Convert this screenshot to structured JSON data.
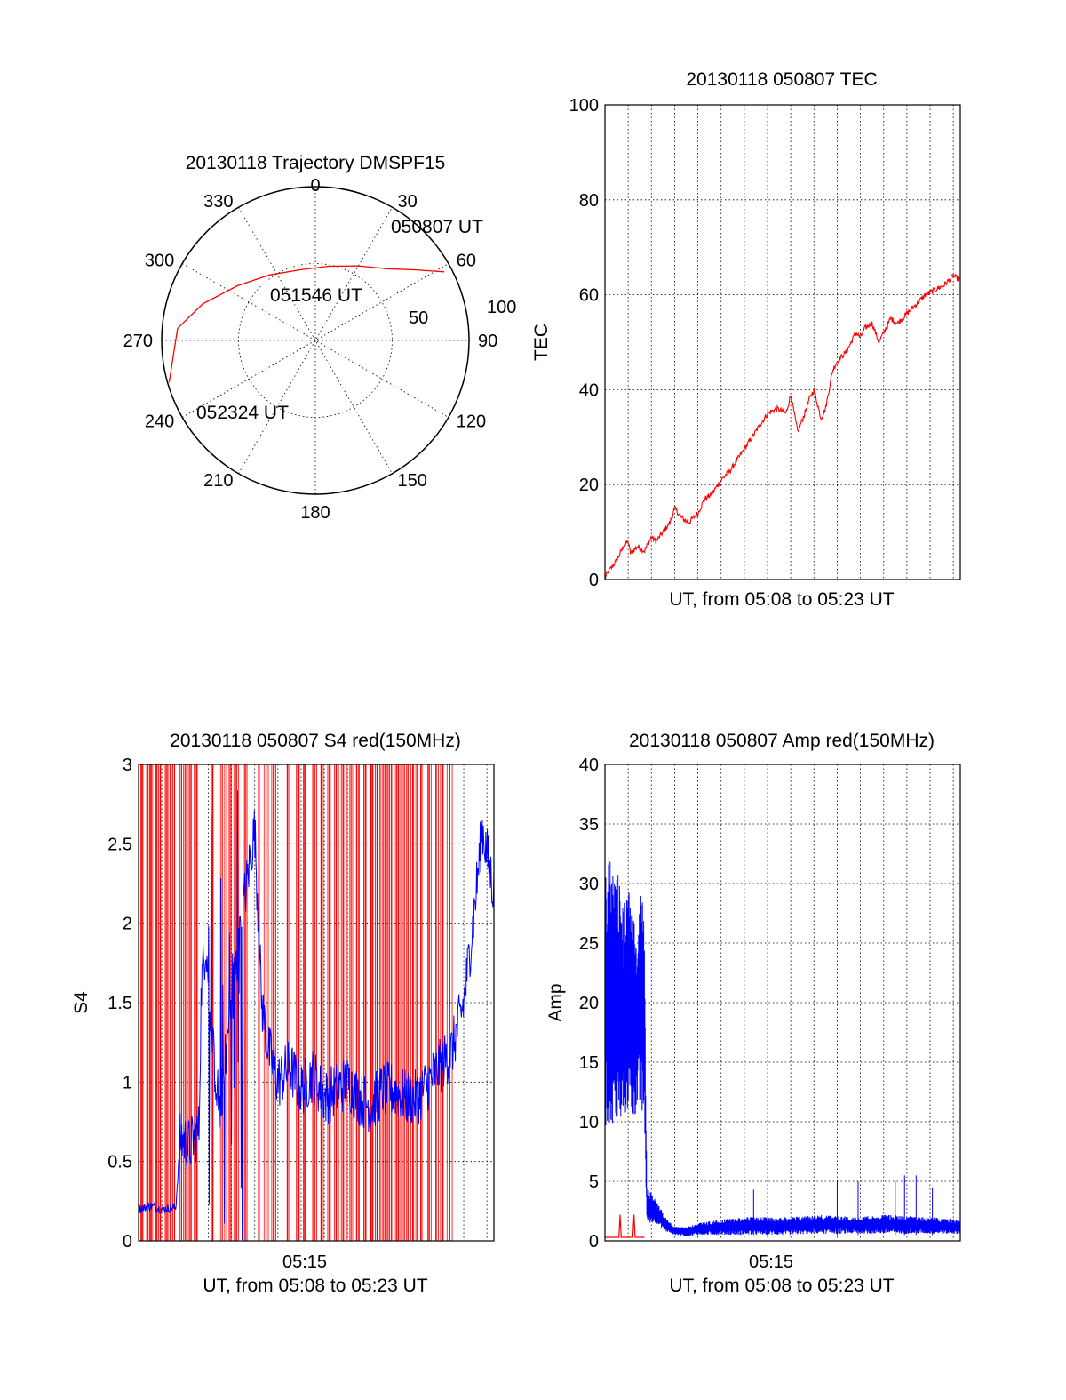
{
  "chart_data": [
    {
      "type": "polar",
      "title": "20130118 Trajectory DMSPF15",
      "angle_labels": [
        "0",
        "30",
        "60",
        "90",
        "120",
        "150",
        "180",
        "210",
        "240",
        "270",
        "300",
        "330"
      ],
      "radius_labels": [
        "50",
        "100"
      ],
      "rlim": [
        0,
        100
      ],
      "grid": true,
      "series": [
        {
          "color": "#ff0000",
          "points": [
            {
              "az": 62,
              "r": 95
            },
            {
              "az": 55,
              "r": 80
            },
            {
              "az": 45,
              "r": 66
            },
            {
              "az": 30,
              "r": 56
            },
            {
              "az": 10,
              "r": 49
            },
            {
              "az": -12,
              "r": 47
            },
            {
              "az": -35,
              "r": 52
            },
            {
              "az": -55,
              "r": 62
            },
            {
              "az": -72,
              "r": 77
            },
            {
              "az": -85,
              "r": 90
            },
            {
              "az": -106,
              "r": 99
            }
          ]
        }
      ],
      "annotations": [
        "050807 UT",
        "051546 UT",
        "052324 UT"
      ]
    },
    {
      "type": "line",
      "title": "20130118 050807 TEC",
      "xlabel": "UT, from 05:08 to 05:23 UT",
      "ylabel": "TEC",
      "xlim": [
        0,
        15.3
      ],
      "ylim": [
        0,
        100
      ],
      "yticks": [
        "0",
        "20",
        "40",
        "60",
        "80",
        "100"
      ],
      "grid": true,
      "series": [
        {
          "color": "#ff0000",
          "x": [
            0.0,
            0.2,
            0.5,
            0.8,
            1.0,
            1.1,
            1.4,
            1.7,
            2.0,
            2.2,
            2.5,
            2.8,
            3.0,
            3.3,
            3.6,
            4.0,
            4.3,
            4.6,
            5.0,
            5.4,
            5.8,
            6.2,
            6.6,
            7.0,
            7.4,
            7.8,
            8.0,
            8.3,
            8.6,
            8.8,
            9.0,
            9.3,
            9.5,
            9.8,
            10.0,
            10.4,
            10.8,
            11.0,
            11.2,
            11.5,
            11.8,
            12.0,
            12.3,
            12.6,
            13.0,
            13.4,
            13.8,
            14.2,
            14.6,
            15.0,
            15.3
          ],
          "y": [
            0.5,
            2,
            4,
            7,
            8,
            5.5,
            7,
            6,
            9,
            8,
            10,
            12,
            15,
            13,
            12,
            14,
            17,
            18,
            21,
            23,
            26,
            29,
            32,
            35,
            36,
            35,
            39,
            31,
            35,
            38,
            40,
            34,
            36,
            44,
            46,
            48,
            52,
            51,
            53,
            54,
            50,
            52,
            55,
            54,
            56,
            58,
            60,
            61,
            62,
            64,
            63
          ]
        }
      ]
    },
    {
      "type": "line",
      "title": "20130118 050807 S4 red(150MHz)",
      "xlabel": "UT, from 05:08 to 05:23 UT",
      "ylabel": "S4",
      "xlim": [
        0,
        15.3
      ],
      "ylim": [
        0,
        3
      ],
      "xticks": [
        "05:15"
      ],
      "yticks": [
        "0",
        "0.5",
        "1",
        "1.5",
        "2",
        "2.5",
        "3"
      ],
      "grid": true,
      "series": [
        {
          "color": "#ff0000",
          "spike_x": [
            0.15,
            0.35,
            0.55,
            0.75,
            0.95,
            1.15,
            1.35,
            1.55,
            1.75,
            2.0,
            2.25,
            2.5,
            3.2,
            3.6,
            3.9,
            4.2,
            4.6,
            5.2,
            5.5,
            5.8,
            6.4,
            6.8,
            7.2,
            7.6,
            7.9,
            8.2,
            8.5,
            8.8,
            9.1,
            9.4,
            9.7,
            10.0,
            10.2,
            10.4,
            10.6,
            10.8,
            11.0,
            11.2,
            11.4,
            11.6,
            11.8,
            12.0,
            12.2,
            12.5,
            12.8,
            13.1,
            13.4
          ],
          "spike_y": [
            3,
            3,
            3,
            3,
            3,
            3,
            3,
            3,
            3,
            3,
            3,
            3,
            3,
            3,
            3,
            3,
            3,
            3,
            3,
            3,
            3,
            3,
            3,
            3,
            3,
            3,
            3,
            3,
            3,
            3,
            3,
            3,
            3,
            3,
            3,
            3,
            3,
            3,
            3,
            3,
            3,
            3,
            3,
            3,
            3,
            3,
            3
          ]
        },
        {
          "color": "#0000ff",
          "x": [
            0.0,
            0.5,
            1.0,
            1.6,
            1.8,
            2.2,
            2.6,
            2.7,
            2.9,
            3.2,
            3.5,
            4.0,
            4.5,
            5.0,
            5.3,
            5.6,
            6.0,
            6.5,
            7.0,
            7.5,
            8.0,
            8.5,
            9.0,
            9.5,
            10.0,
            10.5,
            11.0,
            11.5,
            12.0,
            12.5,
            13.0,
            13.5,
            14.0,
            14.4,
            14.8,
            15.3
          ],
          "y": [
            0.2,
            0.22,
            0.2,
            0.21,
            0.65,
            0.6,
            0.7,
            1.6,
            1.9,
            1.2,
            0.8,
            1.5,
            2.1,
            2.6,
            1.5,
            1.2,
            1.0,
            1.1,
            0.95,
            1.05,
            0.9,
            0.95,
            1.0,
            0.9,
            0.85,
            0.95,
            0.95,
            0.9,
            0.9,
            1.0,
            1.1,
            1.2,
            1.5,
            2.0,
            2.6,
            2.2
          ]
        }
      ]
    },
    {
      "type": "line",
      "title": "20130118 050807 Amp red(150MHz)",
      "xlabel": "UT, from 05:08 to 05:23 UT",
      "ylabel": "Amp",
      "xlim": [
        0,
        15.3
      ],
      "ylim": [
        0,
        40
      ],
      "xticks": [
        "05:15"
      ],
      "yticks": [
        "0",
        "5",
        "10",
        "15",
        "20",
        "25",
        "30",
        "35",
        "40"
      ],
      "grid": true,
      "series": [
        {
          "color": "#ff0000",
          "x": [
            0.0,
            0.6,
            0.65,
            0.7,
            1.2,
            1.25,
            1.3,
            1.7
          ],
          "y": [
            0.3,
            0.3,
            2.2,
            0.3,
            0.3,
            2.2,
            0.3,
            0.3
          ]
        },
        {
          "color": "#0000ff",
          "band_x": [
            0.0,
            0.2,
            0.4,
            0.6,
            0.8,
            1.0,
            1.2,
            1.4,
            1.6,
            1.7,
            1.8,
            2.2,
            2.6,
            3.0,
            3.5,
            4.0,
            5.0,
            6.0,
            7.0,
            8.0,
            9.0,
            10.0,
            11.0,
            12.0,
            13.0,
            14.0,
            15.3
          ],
          "band_min": [
            9,
            9,
            10,
            9,
            10,
            11,
            10,
            11,
            10,
            10,
            1.5,
            1.5,
            0.8,
            0.5,
            0.4,
            0.5,
            0.5,
            0.5,
            0.5,
            0.5,
            0.6,
            0.6,
            0.6,
            0.6,
            0.6,
            0.6,
            0.6
          ],
          "band_max": [
            30,
            33,
            30,
            31,
            28,
            30,
            27,
            26,
            31,
            25,
            4.5,
            3.5,
            2,
            1.2,
            1.2,
            1.5,
            1.8,
            2,
            2,
            2,
            2.2,
            2.1,
            2,
            2.2,
            2.1,
            2,
            1.8
          ],
          "spike_x": [
            6.4,
            10.0,
            10.9,
            11.8,
            12.5,
            12.9,
            13.4,
            14.1
          ],
          "spike_y": [
            4.3,
            5.0,
            5.0,
            6.5,
            5.0,
            5.5,
            5.5,
            4.5
          ]
        }
      ]
    }
  ]
}
